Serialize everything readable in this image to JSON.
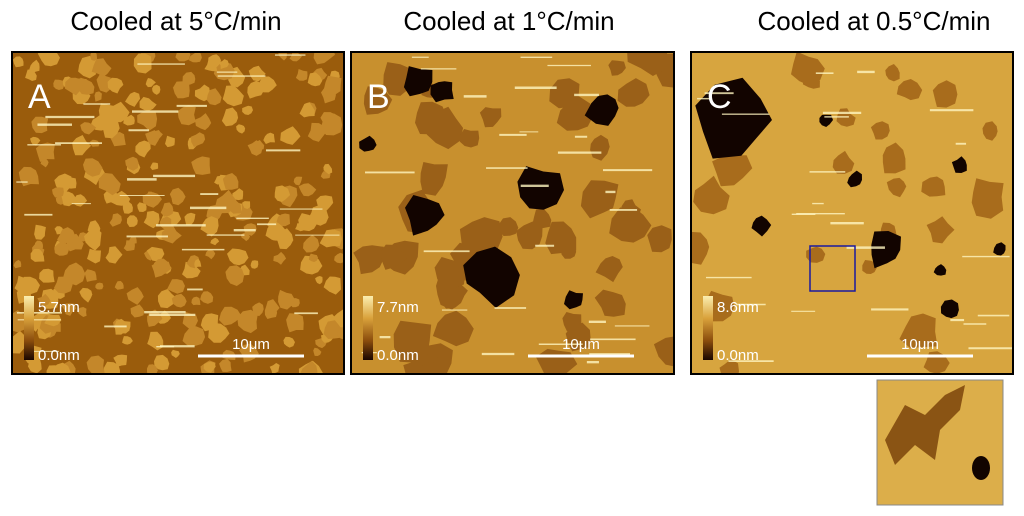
{
  "panels": [
    {
      "title": "Cooled at 5°C/min",
      "letter": "A",
      "scale_max": "5.7nm",
      "scale_min": "0.0nm",
      "scale_bar": "10μm"
    },
    {
      "title": "Cooled at 1°C/min",
      "letter": "B",
      "scale_max": "7.7nm",
      "scale_min": "0.0nm",
      "scale_bar": "10μm"
    },
    {
      "title": "Cooled at 0.5°C/min",
      "letter": "C",
      "scale_max": "8.6nm",
      "scale_min": "0.0nm",
      "scale_bar": "10μm"
    }
  ]
}
